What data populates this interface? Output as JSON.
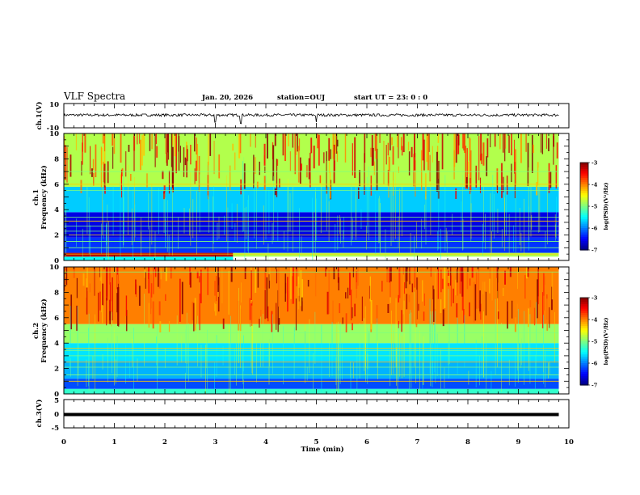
{
  "header": {
    "title": "VLF Spectra",
    "date": "Jan. 20, 2026",
    "station": "station=OUJ",
    "start": "start UT =  23: 0  : 0"
  },
  "colors": {
    "spectral_scale": [
      "#00007f",
      "#0000ff",
      "#007fff",
      "#00ffff",
      "#7fff7f",
      "#ffff00",
      "#ff7f00",
      "#ff0000",
      "#7f0000"
    ],
    "waveform": "#000000",
    "frame": "#000000"
  },
  "chart_data": [
    {
      "type": "line",
      "panel": "ch1-waveform",
      "ylabel": "ch.1(V)",
      "ylim": [
        -10,
        10
      ],
      "yticks": [
        "10",
        "-10"
      ],
      "xlim": [
        0,
        10
      ],
      "baseline_v": 0.5,
      "spikes_min": [
        3.0,
        3.5,
        5.0
      ],
      "data_end_min": 9.8
    },
    {
      "type": "heatmap",
      "panel": "ch1-spectrogram",
      "ylabel": "ch.1\nFrequency (kHz)",
      "ylabel_line1": "ch.1",
      "ylabel_line2": "Frequency (kHz)",
      "ylim": [
        0,
        10
      ],
      "yticks": [
        "0",
        "2",
        "4",
        "6",
        "8",
        "10"
      ],
      "xlim": [
        0,
        10
      ],
      "data_end_min": 9.8,
      "colorbar": {
        "label": "log(PSD)(V²/Hz)",
        "range": [
          -7,
          -3
        ],
        "ticks": [
          "-3",
          "-4",
          "-5",
          "-6",
          "-7"
        ]
      },
      "bands": [
        {
          "f_khz": [
            0.0,
            0.3
          ],
          "t_min": [
            0,
            3.35
          ],
          "level": -5.5
        },
        {
          "f_khz": [
            0.3,
            0.6
          ],
          "t_min": [
            0,
            3.35
          ],
          "level": -3.2
        },
        {
          "f_khz": [
            0.3,
            0.6
          ],
          "t_min": [
            3.35,
            9.8
          ],
          "level": -4.8
        },
        {
          "f_khz": [
            0.6,
            1.8
          ],
          "t_min": [
            0,
            9.8
          ],
          "level": -6.3
        },
        {
          "f_khz": [
            1.8,
            3.8
          ],
          "t_min": [
            0,
            9.8
          ],
          "level": -6.6
        },
        {
          "f_khz": [
            3.8,
            5.8
          ],
          "t_min": [
            0,
            9.8
          ],
          "level": -5.7
        },
        {
          "f_khz": [
            5.8,
            10.0
          ],
          "t_min": [
            0,
            9.8
          ],
          "level": -4.8
        }
      ],
      "lines_khz": [
        0.5,
        1.0,
        1.5,
        2.0,
        2.3,
        2.7,
        3.1,
        3.4,
        5.5,
        6.0,
        7.0
      ]
    },
    {
      "type": "heatmap",
      "panel": "ch2-spectrogram",
      "ylabel": "ch.2\nFrequency (kHz)",
      "ylabel_line1": "ch.2",
      "ylabel_line2": "Frequency (kHz)",
      "ylim": [
        0,
        10
      ],
      "yticks": [
        "0",
        "2",
        "4",
        "6",
        "8",
        "10"
      ],
      "xlim": [
        0,
        10
      ],
      "data_end_min": 9.8,
      "colorbar": {
        "label": "log(PSD)(V²/Hz)",
        "range": [
          -7,
          -3
        ],
        "ticks": [
          "-3",
          "-4",
          "-5",
          "-6",
          "-7"
        ]
      },
      "bands": [
        {
          "f_khz": [
            0.0,
            0.4
          ],
          "t_min": [
            0,
            9.8
          ],
          "level": -5.3
        },
        {
          "f_khz": [
            0.4,
            1.2
          ],
          "t_min": [
            0,
            9.8
          ],
          "level": -6.2
        },
        {
          "f_khz": [
            1.2,
            2.6
          ],
          "t_min": [
            0,
            9.8
          ],
          "level": -5.8
        },
        {
          "f_khz": [
            2.6,
            4.0
          ],
          "t_min": [
            0,
            9.8
          ],
          "level": -5.6
        },
        {
          "f_khz": [
            4.0,
            5.5
          ],
          "t_min": [
            0,
            9.8
          ],
          "level": -4.9
        },
        {
          "f_khz": [
            5.5,
            10.0
          ],
          "t_min": [
            0,
            9.8
          ],
          "level": -4.0
        }
      ],
      "lines_khz": [
        1.0,
        1.5,
        2.1,
        2.5,
        3.0,
        3.4,
        3.6,
        4.8,
        9.6
      ]
    },
    {
      "type": "line",
      "panel": "ch3-waveform",
      "ylabel": "ch.3(V)",
      "ylim": [
        -5,
        5
      ],
      "yticks": [
        "5",
        "0",
        "-5"
      ],
      "xlim": [
        0,
        10
      ],
      "xlabel": "Time (min)",
      "xticks": [
        "0",
        "1",
        "2",
        "3",
        "4",
        "5",
        "6",
        "7",
        "8",
        "9",
        "10"
      ],
      "baseline_v": 0.0,
      "data_end_min": 9.8
    }
  ]
}
